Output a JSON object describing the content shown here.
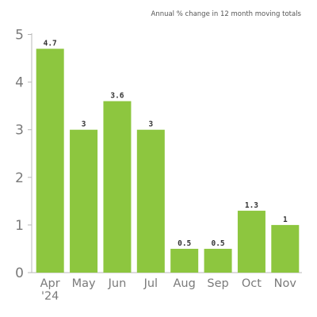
{
  "chart_data": {
    "type": "bar",
    "title": "",
    "subtitle": "Annual % change in 12 month moving totals",
    "xlabel": "",
    "ylabel": "",
    "categories": [
      "Apr '24",
      "May",
      "Jun",
      "Jul",
      "Aug",
      "Sep",
      "Oct",
      "Nov"
    ],
    "category_labels": [
      [
        "Apr",
        "'24"
      ],
      [
        "May"
      ],
      [
        "Jun"
      ],
      [
        "Jul"
      ],
      [
        "Aug"
      ],
      [
        "Sep"
      ],
      [
        "Oct"
      ],
      [
        "Nov"
      ]
    ],
    "values": [
      4.7,
      3,
      3.6,
      3,
      0.5,
      0.5,
      1.3,
      1
    ],
    "data_labels": [
      "4.7",
      "3",
      "3.6",
      "3",
      "0.5",
      "0.5",
      "1.3",
      "1"
    ],
    "ylim": [
      0,
      5
    ],
    "yticks": [
      0,
      1,
      2,
      3,
      4,
      5
    ],
    "grid": false,
    "legend": "none",
    "bar_color": "#8dc63f"
  }
}
